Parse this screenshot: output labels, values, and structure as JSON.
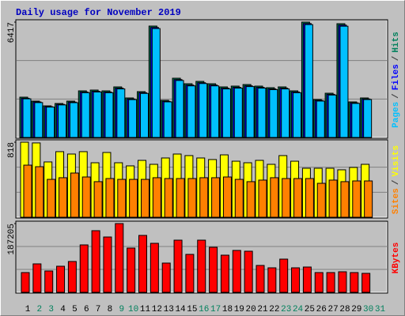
{
  "chart_data": {
    "type": "bar",
    "title": "Daily usage for November 2019",
    "categories": [
      "1",
      "2",
      "3",
      "4",
      "5",
      "6",
      "7",
      "8",
      "9",
      "10",
      "11",
      "12",
      "13",
      "14",
      "15",
      "16",
      "17",
      "18",
      "19",
      "20",
      "21",
      "22",
      "23",
      "24",
      "25",
      "26",
      "27",
      "28",
      "29",
      "30",
      "31"
    ],
    "highlight_categories": [
      1,
      2,
      8,
      9,
      15,
      16,
      22,
      23,
      29,
      30
    ],
    "highlight_color": "#00805c",
    "legend_separator": "/",
    "panels": [
      {
        "ylim": [
          0,
          6417
        ],
        "yticks": [
          6417
        ],
        "series": [
          {
            "name": "Hits",
            "color": "#00805c",
            "values": [
              2241,
              2022,
              1758,
              1890,
              2022,
              2593,
              2637,
              2593,
              2813,
              2198,
              2549,
              6197,
              2066,
              3296,
              2989,
              3120,
              2989,
              2813,
              2857,
              2945,
              2857,
              2769,
              2813,
              2593,
              6417,
              2110,
              2461,
              6329,
              1978,
              2198,
              null
            ]
          },
          {
            "name": "Files",
            "color": "#0000ff",
            "values": [
              2180,
              1975,
              1712,
              1840,
              1968,
              2530,
              2571,
              2528,
              2745,
              2140,
              2490,
              6121,
              2010,
              3220,
              2915,
              3046,
              2918,
              2744,
              2790,
              2872,
              2788,
              2702,
              2745,
              2530,
              6338,
              2058,
              2400,
              6252,
              1925,
              2142,
              null
            ]
          },
          {
            "name": "Pages",
            "color": "#00c0ff",
            "values": [
              2150,
              1940,
              1690,
              1810,
              1935,
              2490,
              2530,
              2490,
              2700,
              2105,
              2450,
              6060,
              1980,
              3170,
              2870,
              3000,
              2870,
              2700,
              2745,
              2830,
              2745,
              2660,
              2700,
              2490,
              6280,
              2025,
              2360,
              6190,
              1895,
              2110,
              null
            ]
          }
        ]
      },
      {
        "ylim": [
          0,
          818
        ],
        "yticks": [
          818
        ],
        "series": [
          {
            "name": "Visits",
            "color": "#ffff00",
            "values": [
              818,
              810,
              603,
              715,
              689,
              715,
              594,
              706,
              594,
              560,
              620,
              577,
              646,
              689,
              672,
              646,
              629,
              680,
              611,
              594,
              620,
              577,
              672,
              611,
              534,
              534,
              534,
              517,
              543,
              577,
              null
            ]
          },
          {
            "name": "Sites",
            "color": "#ff8000",
            "values": [
              568,
              551,
              413,
              431,
              482,
              439,
              388,
              422,
              413,
              413,
              413,
              431,
              422,
              422,
              422,
              431,
              431,
              439,
              413,
              388,
              405,
              431,
              422,
              422,
              422,
              370,
              405,
              388,
              396,
              396,
              null
            ]
          }
        ]
      },
      {
        "ylim": [
          0,
          187205
        ],
        "yticks": [
          187205
        ],
        "series": [
          {
            "name": "KBytes",
            "color": "#ff0000",
            "values": [
              53800,
              77472,
              58104,
              71016,
              83928,
              129120,
              167856,
              150640,
              187205,
              120512,
              154944,
              133424,
              79624,
              142032,
              103296,
              142032,
              122664,
              101144,
              114056,
              111904,
              73168,
              66712,
              90384,
              66712,
              68864,
              53800,
              53800,
              55952,
              53800,
              51648,
              null
            ]
          }
        ]
      }
    ]
  }
}
